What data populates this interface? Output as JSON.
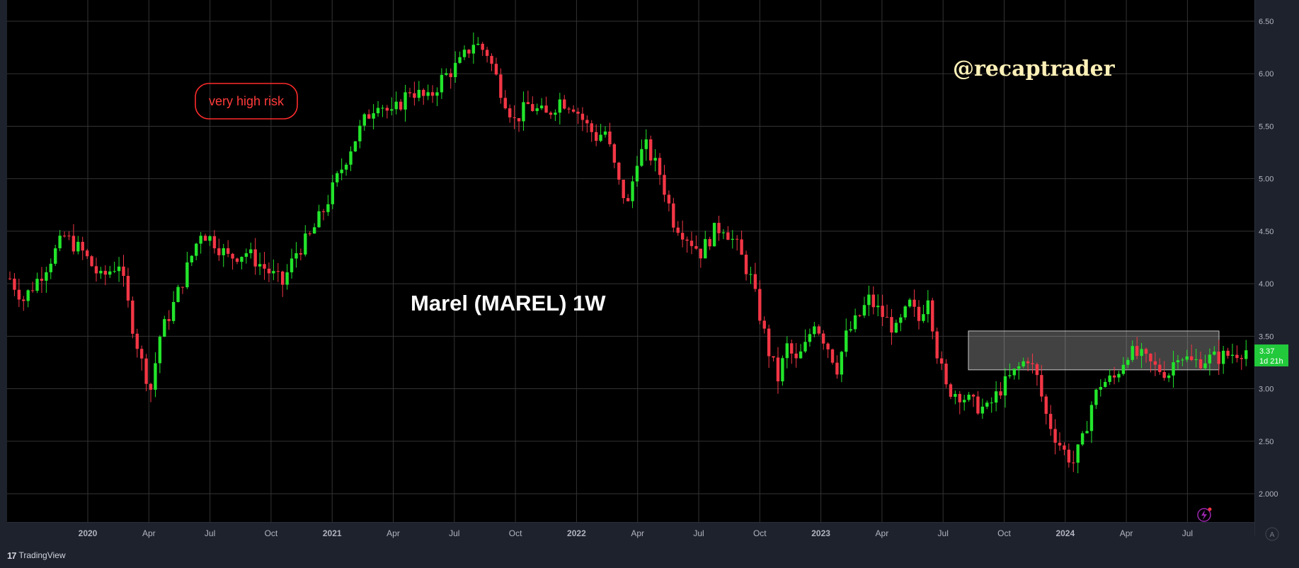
{
  "chart_data": {
    "type": "candlestick",
    "title": "Marel (MAREL) 1W",
    "watermark": "@recaptrader",
    "risk_label": "very high risk",
    "y_ticks": [
      "2.000",
      "2.50",
      "3.00",
      "3.50",
      "4.00",
      "4.50",
      "5.00",
      "5.50",
      "6.00",
      "6.50"
    ],
    "y_range": [
      1.7,
      6.7
    ],
    "x_tick_labels": [
      {
        "label": "2020",
        "bold": true
      },
      {
        "label": "Apr",
        "bold": false
      },
      {
        "label": "Jul",
        "bold": false
      },
      {
        "label": "Oct",
        "bold": false
      },
      {
        "label": "2021",
        "bold": true
      },
      {
        "label": "Apr",
        "bold": false
      },
      {
        "label": "Jul",
        "bold": false
      },
      {
        "label": "Oct",
        "bold": false
      },
      {
        "label": "2022",
        "bold": true
      },
      {
        "label": "Apr",
        "bold": false
      },
      {
        "label": "Jul",
        "bold": false
      },
      {
        "label": "Oct",
        "bold": false
      },
      {
        "label": "2023",
        "bold": true
      },
      {
        "label": "Apr",
        "bold": false
      },
      {
        "label": "Jul",
        "bold": false
      },
      {
        "label": "Oct",
        "bold": false
      },
      {
        "label": "2024",
        "bold": true
      },
      {
        "label": "Apr",
        "bold": false
      },
      {
        "label": "Jul",
        "bold": false
      }
    ],
    "last_price": "3.37",
    "bar_countdown": "1d 21h",
    "range_zone": {
      "from": "2023-08",
      "to": "2024-07",
      "low": 3.18,
      "high": 3.55
    },
    "colors": {
      "up": "#22e52b",
      "down": "#f23645",
      "background": "#000000",
      "grid": "#3a3a3a",
      "accent": "#ff3b3b",
      "watermark": "#fff1b8",
      "price_tag": "#22c93b"
    },
    "price_path": [
      [
        0,
        4.05
      ],
      [
        3,
        3.85
      ],
      [
        7,
        4.1
      ],
      [
        12,
        4.45
      ],
      [
        16,
        4.3
      ],
      [
        20,
        4.05
      ],
      [
        24,
        4.2
      ],
      [
        27,
        3.6
      ],
      [
        29,
        3.25
      ],
      [
        31,
        3.0
      ],
      [
        33,
        3.5
      ],
      [
        36,
        3.8
      ],
      [
        39,
        4.15
      ],
      [
        42,
        4.5
      ],
      [
        45,
        4.4
      ],
      [
        48,
        4.25
      ],
      [
        52,
        4.3
      ],
      [
        56,
        4.15
      ],
      [
        60,
        4.0
      ],
      [
        63,
        4.3
      ],
      [
        66,
        4.45
      ],
      [
        69,
        4.7
      ],
      [
        72,
        5.0
      ],
      [
        75,
        5.3
      ],
      [
        78,
        5.55
      ],
      [
        81,
        5.75
      ],
      [
        84,
        5.6
      ],
      [
        88,
        5.85
      ],
      [
        92,
        5.75
      ],
      [
        95,
        5.95
      ],
      [
        99,
        6.1
      ],
      [
        102,
        6.3
      ],
      [
        105,
        6.2
      ],
      [
        108,
        5.85
      ],
      [
        111,
        5.55
      ],
      [
        114,
        5.7
      ],
      [
        118,
        5.6
      ],
      [
        121,
        5.75
      ],
      [
        124,
        5.7
      ],
      [
        127,
        5.5
      ],
      [
        129,
        5.4
      ],
      [
        131,
        5.45
      ],
      [
        134,
        4.95
      ],
      [
        136,
        4.75
      ],
      [
        138,
        5.2
      ],
      [
        140,
        5.3
      ],
      [
        143,
        5.05
      ],
      [
        146,
        4.6
      ],
      [
        149,
        4.45
      ],
      [
        152,
        4.3
      ],
      [
        155,
        4.5
      ],
      [
        157,
        4.55
      ],
      [
        160,
        4.35
      ],
      [
        163,
        4.05
      ],
      [
        165,
        3.7
      ],
      [
        167,
        3.35
      ],
      [
        169,
        3.1
      ],
      [
        171,
        3.4
      ],
      [
        173,
        3.25
      ],
      [
        175,
        3.4
      ],
      [
        177,
        3.65
      ],
      [
        180,
        3.4
      ],
      [
        182,
        3.2
      ],
      [
        184,
        3.5
      ],
      [
        187,
        3.7
      ],
      [
        189,
        3.85
      ],
      [
        192,
        3.7
      ],
      [
        195,
        3.55
      ],
      [
        198,
        3.8
      ],
      [
        200,
        3.65
      ],
      [
        202,
        3.9
      ],
      [
        204,
        3.35
      ],
      [
        206,
        3.0
      ],
      [
        209,
        2.95
      ],
      [
        212,
        2.85
      ],
      [
        215,
        2.8
      ],
      [
        218,
        3.0
      ],
      [
        221,
        3.15
      ],
      [
        224,
        3.3
      ],
      [
        226,
        3.1
      ],
      [
        228,
        2.75
      ],
      [
        230,
        2.55
      ],
      [
        232,
        2.4
      ],
      [
        234,
        2.3
      ],
      [
        236,
        2.5
      ],
      [
        238,
        2.85
      ],
      [
        240,
        3.05
      ],
      [
        243,
        3.1
      ],
      [
        246,
        3.35
      ],
      [
        249,
        3.3
      ],
      [
        252,
        3.2
      ],
      [
        255,
        3.15
      ],
      [
        257,
        3.35
      ],
      [
        260,
        3.25
      ],
      [
        263,
        3.28
      ],
      [
        266,
        3.3
      ],
      [
        268,
        3.32
      ],
      [
        270,
        3.35
      ],
      [
        272,
        3.37
      ]
    ]
  }
}
